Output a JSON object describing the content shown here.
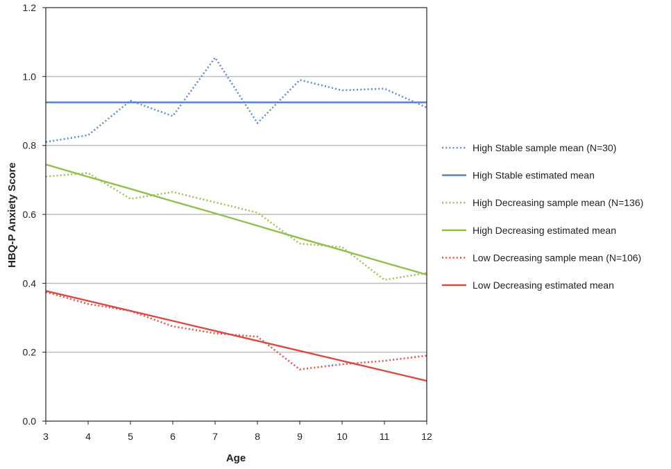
{
  "chart_data": {
    "type": "line",
    "title": "",
    "xlabel": "Age",
    "ylabel": "HBQ-P Anxiety Score",
    "xlim": [
      3,
      12
    ],
    "ylim": [
      0,
      1.2
    ],
    "grid": true,
    "legend_position": "right",
    "x_ticks": [
      "3",
      "4",
      "5",
      "6",
      "7",
      "8",
      "9",
      "10",
      "11",
      "12"
    ],
    "y_ticks": [
      "0.0",
      "0.2",
      "0.4",
      "0.6",
      "0.8",
      "1.0",
      "1.2"
    ],
    "x": [
      3,
      4,
      5,
      6,
      7,
      8,
      9,
      10,
      11,
      12
    ],
    "series": [
      {
        "name": "High Stable sample mean (N=30)",
        "style": "dotted",
        "color": "#5b8fd6",
        "values": [
          0.81,
          0.83,
          0.93,
          0.885,
          1.055,
          0.865,
          0.99,
          0.96,
          0.965,
          0.91
        ]
      },
      {
        "name": "High Stable estimated mean",
        "style": "solid",
        "color": "#4a7fcf",
        "values": [
          0.925,
          0.925,
          0.925,
          0.925,
          0.925,
          0.925,
          0.925,
          0.925,
          0.925,
          0.925
        ]
      },
      {
        "name": "High Decreasing sample mean (N=136)",
        "style": "dotted",
        "color": "#9bc450",
        "values": [
          0.71,
          0.72,
          0.645,
          0.665,
          0.635,
          0.605,
          0.515,
          0.505,
          0.41,
          0.43
        ]
      },
      {
        "name": "High Decreasing estimated mean",
        "style": "solid",
        "color": "#8fbf4d",
        "values": [
          0.745,
          0.709,
          0.674,
          0.638,
          0.603,
          0.567,
          0.531,
          0.496,
          0.46,
          0.425
        ]
      },
      {
        "name": "Low Decreasing sample mean (N=106)",
        "style": "dotted",
        "color": "#e0554d",
        "values": [
          0.375,
          0.34,
          0.32,
          0.275,
          0.255,
          0.245,
          0.15,
          0.165,
          0.175,
          0.19
        ]
      },
      {
        "name": "Low Decreasing estimated mean",
        "style": "solid",
        "color": "#d94a43",
        "values": [
          0.378,
          0.349,
          0.32,
          0.291,
          0.262,
          0.233,
          0.204,
          0.175,
          0.146,
          0.117
        ]
      }
    ]
  }
}
